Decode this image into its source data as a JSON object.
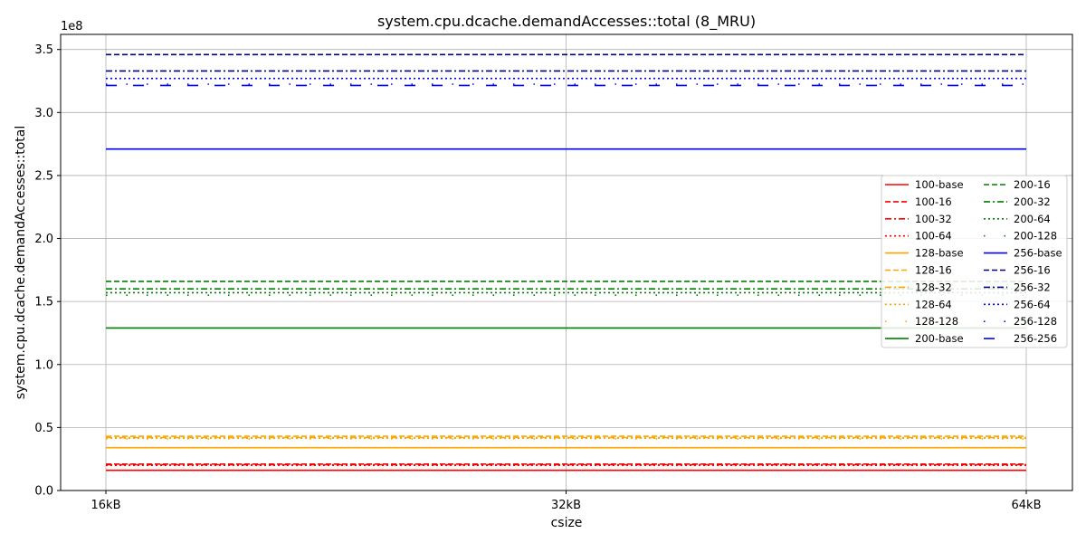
{
  "chart_data": {
    "type": "line",
    "title": "system.cpu.dcache.demandAccesses::total (8_MRU)",
    "xlabel": "csize",
    "ylabel": "system.cpu.dcache.demandAccesses::total",
    "y_offset_label": "1e8",
    "categories": [
      "16kB",
      "32kB",
      "64kB"
    ],
    "ylim": [
      0,
      362000000
    ],
    "y_ticks": [
      0,
      50000000,
      100000000,
      150000000,
      200000000,
      250000000,
      300000000,
      350000000
    ],
    "y_tick_labels": [
      "0.0",
      "0.5",
      "1.0",
      "1.5",
      "2.0",
      "2.5",
      "3.0",
      "3.5"
    ],
    "grid": true,
    "legend_position": "center-right",
    "series": [
      {
        "name": "100-base",
        "color": "#ff0000",
        "style": "solid",
        "values": [
          16000000,
          16000000,
          16000000
        ]
      },
      {
        "name": "100-16",
        "color": "#ff0000",
        "style": "dashed",
        "values": [
          21000000,
          21000000,
          21000000
        ]
      },
      {
        "name": "100-32",
        "color": "#ff0000",
        "style": "dashdot",
        "values": [
          20500000,
          20500000,
          20500000
        ]
      },
      {
        "name": "100-64",
        "color": "#ff0000",
        "style": "dotted",
        "values": [
          20000000,
          20000000,
          20000000
        ]
      },
      {
        "name": "128-base",
        "color": "#ffa500",
        "style": "solid",
        "values": [
          34000000,
          34000000,
          34000000
        ]
      },
      {
        "name": "128-16",
        "color": "#ffa500",
        "style": "dashed",
        "values": [
          43000000,
          43000000,
          43000000
        ]
      },
      {
        "name": "128-32",
        "color": "#ffa500",
        "style": "dashdot",
        "values": [
          42000000,
          42000000,
          42000000
        ]
      },
      {
        "name": "128-64",
        "color": "#ffa500",
        "style": "dotted",
        "values": [
          41500000,
          41500000,
          41500000
        ]
      },
      {
        "name": "128-128",
        "color": "#ffa500",
        "style": "sparse",
        "values": [
          41000000,
          41000000,
          41000000
        ]
      },
      {
        "name": "200-base",
        "color": "#008000",
        "style": "solid",
        "values": [
          129000000,
          129000000,
          129000000
        ]
      },
      {
        "name": "200-16",
        "color": "#008000",
        "style": "dashed",
        "values": [
          166000000,
          166000000,
          166000000
        ]
      },
      {
        "name": "200-32",
        "color": "#008000",
        "style": "dashdot",
        "values": [
          160000000,
          160000000,
          160000000
        ]
      },
      {
        "name": "200-64",
        "color": "#008000",
        "style": "dotted",
        "values": [
          157000000,
          157000000,
          157000000
        ]
      },
      {
        "name": "200-128",
        "color": "#008000",
        "style": "sparse",
        "values": [
          155000000,
          155000000,
          155000000
        ]
      },
      {
        "name": "256-base",
        "color": "#0000ff",
        "style": "solid",
        "values": [
          271000000,
          271000000,
          271000000
        ]
      },
      {
        "name": "256-16",
        "color": "#00008b",
        "style": "dashed",
        "values": [
          346000000,
          346000000,
          346000000
        ]
      },
      {
        "name": "256-32",
        "color": "#00008b",
        "style": "dashdot",
        "values": [
          333000000,
          333000000,
          333000000
        ]
      },
      {
        "name": "256-64",
        "color": "#0000ff",
        "style": "dotted",
        "values": [
          327000000,
          327000000,
          327000000
        ]
      },
      {
        "name": "256-128",
        "color": "#0000ff",
        "style": "sparse",
        "values": [
          322500000,
          322500000,
          322500000
        ]
      },
      {
        "name": "256-256",
        "color": "#0000ff",
        "style": "longdash",
        "values": [
          321500000,
          321500000,
          321500000
        ]
      }
    ]
  }
}
